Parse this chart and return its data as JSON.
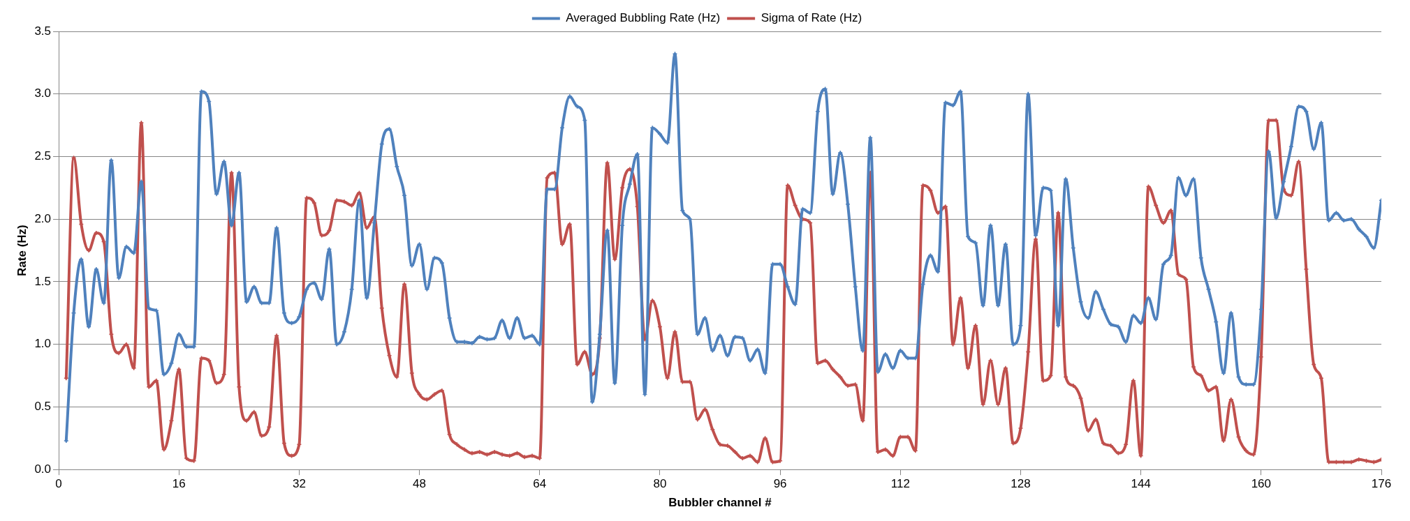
{
  "chart_data": {
    "type": "line",
    "xlabel": "Bubbler channel #",
    "ylabel": "Rate (Hz)",
    "x": [
      1,
      2,
      3,
      4,
      5,
      6,
      7,
      8,
      9,
      10,
      11,
      12,
      13,
      14,
      15,
      16,
      17,
      18,
      19,
      20,
      21,
      22,
      23,
      24,
      25,
      26,
      27,
      28,
      29,
      30,
      31,
      32,
      33,
      34,
      35,
      36,
      37,
      38,
      39,
      40,
      41,
      42,
      43,
      44,
      45,
      46,
      47,
      48,
      49,
      50,
      51,
      52,
      53,
      54,
      55,
      56,
      57,
      58,
      59,
      60,
      61,
      62,
      63,
      64,
      65,
      66,
      67,
      68,
      69,
      70,
      71,
      72,
      73,
      74,
      75,
      76,
      77,
      78,
      79,
      80,
      81,
      82,
      83,
      84,
      85,
      86,
      87,
      88,
      89,
      90,
      91,
      92,
      93,
      94,
      95,
      96,
      97,
      98,
      99,
      100,
      101,
      102,
      103,
      104,
      105,
      106,
      107,
      108,
      109,
      110,
      111,
      112,
      113,
      114,
      115,
      116,
      117,
      118,
      119,
      120,
      121,
      122,
      123,
      124,
      125,
      126,
      127,
      128,
      129,
      130,
      131,
      132,
      133,
      134,
      135,
      136,
      137,
      138,
      139,
      140,
      141,
      142,
      143,
      144,
      145,
      146,
      147,
      148,
      149,
      150,
      151,
      152,
      153,
      154,
      155,
      156,
      157,
      158,
      159,
      160,
      161,
      162,
      163,
      164,
      165,
      166,
      167,
      168,
      169,
      170,
      171,
      172,
      173,
      174,
      175,
      176
    ],
    "series": [
      {
        "name": "Averaged Bubbling Rate (Hz)",
        "color": "#4f81bd",
        "values": [
          0.23,
          1.25,
          1.68,
          1.14,
          1.6,
          1.33,
          2.47,
          1.53,
          1.78,
          1.73,
          2.3,
          1.29,
          1.27,
          0.76,
          0.85,
          1.08,
          0.98,
          0.98,
          3.02,
          2.94,
          2.2,
          2.46,
          1.95,
          2.37,
          1.34,
          1.46,
          1.33,
          1.33,
          1.93,
          1.25,
          1.17,
          1.22,
          1.44,
          1.49,
          1.36,
          1.76,
          1.0,
          1.1,
          1.44,
          2.15,
          1.37,
          1.97,
          2.6,
          2.72,
          2.42,
          2.19,
          1.63,
          1.8,
          1.44,
          1.69,
          1.65,
          1.21,
          1.02,
          1.02,
          1.01,
          1.06,
          1.04,
          1.05,
          1.19,
          1.05,
          1.21,
          1.05,
          1.07,
          1.0,
          2.24,
          2.24,
          2.73,
          2.98,
          2.9,
          2.79,
          0.54,
          1.08,
          1.91,
          0.69,
          1.95,
          2.28,
          2.52,
          0.6,
          2.73,
          2.68,
          2.61,
          3.32,
          2.07,
          2.0,
          1.08,
          1.21,
          0.95,
          1.07,
          0.91,
          1.06,
          1.05,
          0.87,
          0.96,
          0.77,
          1.64,
          1.64,
          1.46,
          1.32,
          2.08,
          2.05,
          2.86,
          3.04,
          2.2,
          2.53,
          2.12,
          1.46,
          0.95,
          2.65,
          0.78,
          0.92,
          0.81,
          0.95,
          0.89,
          0.89,
          1.48,
          1.71,
          1.58,
          2.93,
          2.91,
          3.02,
          1.86,
          1.81,
          1.31,
          1.95,
          1.31,
          1.8,
          1.0,
          1.15,
          3.0,
          1.87,
          2.25,
          2.23,
          1.15,
          2.32,
          1.77,
          1.34,
          1.21,
          1.42,
          1.28,
          1.16,
          1.14,
          1.02,
          1.23,
          1.17,
          1.37,
          1.2,
          1.64,
          1.71,
          2.33,
          2.19,
          2.32,
          1.69,
          1.44,
          1.18,
          0.77,
          1.25,
          0.74,
          0.68,
          0.68,
          1.28,
          2.54,
          2.01,
          2.3,
          2.58,
          2.9,
          2.86,
          2.56,
          2.77,
          1.99,
          2.05,
          1.99,
          2.0,
          1.92,
          1.86,
          1.77,
          2.15
        ]
      },
      {
        "name": "Sigma of Rate (Hz)",
        "color": "#c0504d",
        "values": [
          0.73,
          2.49,
          1.96,
          1.75,
          1.89,
          1.82,
          1.08,
          0.93,
          1.0,
          0.81,
          2.77,
          0.66,
          0.71,
          0.16,
          0.39,
          0.8,
          0.09,
          0.07,
          0.89,
          0.87,
          0.69,
          0.76,
          2.37,
          0.66,
          0.39,
          0.46,
          0.27,
          0.34,
          1.07,
          0.21,
          0.11,
          0.2,
          2.17,
          2.13,
          1.87,
          1.91,
          2.15,
          2.14,
          2.11,
          2.21,
          1.93,
          2.02,
          1.29,
          0.91,
          0.74,
          1.48,
          0.77,
          0.6,
          0.56,
          0.6,
          0.63,
          0.28,
          0.2,
          0.16,
          0.13,
          0.14,
          0.12,
          0.14,
          0.12,
          0.11,
          0.13,
          0.1,
          0.11,
          0.09,
          2.33,
          2.37,
          1.8,
          1.96,
          0.84,
          0.94,
          0.76,
          1.05,
          2.45,
          1.68,
          2.25,
          2.4,
          2.1,
          1.04,
          1.35,
          1.14,
          0.73,
          1.1,
          0.7,
          0.7,
          0.4,
          0.48,
          0.32,
          0.2,
          0.19,
          0.14,
          0.09,
          0.11,
          0.06,
          0.25,
          0.06,
          0.07,
          2.27,
          2.11,
          2.0,
          1.97,
          0.85,
          0.87,
          0.8,
          0.74,
          0.67,
          0.68,
          0.39,
          2.37,
          0.14,
          0.16,
          0.11,
          0.26,
          0.26,
          0.15,
          2.27,
          2.23,
          2.05,
          2.1,
          1.0,
          1.37,
          0.81,
          1.15,
          0.52,
          0.87,
          0.52,
          0.81,
          0.21,
          0.33,
          0.94,
          1.84,
          0.71,
          0.75,
          2.05,
          0.74,
          0.67,
          0.57,
          0.31,
          0.4,
          0.21,
          0.19,
          0.13,
          0.2,
          0.71,
          0.11,
          2.26,
          2.11,
          1.97,
          2.07,
          1.56,
          1.52,
          0.82,
          0.75,
          0.63,
          0.66,
          0.23,
          0.56,
          0.26,
          0.15,
          0.12,
          0.9,
          2.79,
          2.79,
          2.24,
          2.19,
          2.46,
          1.6,
          0.84,
          0.73,
          0.06,
          0.06,
          0.06,
          0.06,
          0.08,
          0.07,
          0.06,
          0.08
        ]
      }
    ],
    "xlim": [
      0,
      176
    ],
    "xticks": [
      0,
      16,
      32,
      48,
      64,
      80,
      96,
      112,
      128,
      144,
      160,
      176
    ],
    "ylim": [
      0,
      3.5
    ],
    "yticks": [
      {
        "value": 0,
        "label": "0.0"
      },
      {
        "value": 0.5,
        "label": "0.5"
      },
      {
        "value": 1,
        "label": "1.0"
      },
      {
        "value": 1.5,
        "label": "1.5"
      },
      {
        "value": 2,
        "label": "2.0"
      },
      {
        "value": 2.5,
        "label": "2.5"
      },
      {
        "value": 3,
        "label": "3.0"
      },
      {
        "value": 3.5,
        "label": "3.5"
      }
    ],
    "grid": "y",
    "legend": "top",
    "marker": "cross",
    "line_style": "solid"
  }
}
